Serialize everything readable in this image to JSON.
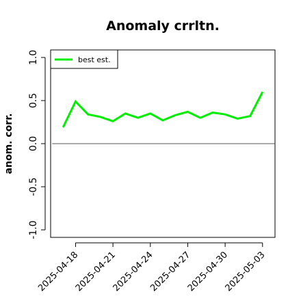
{
  "chart_data": {
    "type": "line",
    "title": "Anomaly crrltn.",
    "xlabel": "",
    "ylabel": "anom. corr.",
    "x": [
      "2025-04-17",
      "2025-04-18",
      "2025-04-19",
      "2025-04-20",
      "2025-04-21",
      "2025-04-22",
      "2025-04-23",
      "2025-04-24",
      "2025-04-25",
      "2025-04-26",
      "2025-04-27",
      "2025-04-28",
      "2025-04-29",
      "2025-04-30",
      "2025-05-01",
      "2025-05-02",
      "2025-05-03"
    ],
    "series": [
      {
        "name": "best est.",
        "color": "#00ee00",
        "values": [
          0.19,
          0.49,
          0.34,
          0.31,
          0.26,
          0.35,
          0.3,
          0.35,
          0.27,
          0.33,
          0.37,
          0.3,
          0.36,
          0.34,
          0.29,
          0.32,
          0.6
        ]
      }
    ],
    "reference_line": {
      "y": 0,
      "color": "#555555"
    },
    "ylim": [
      -1.0,
      1.0
    ],
    "xlim": [
      "2025-04-16",
      "2025-05-04"
    ],
    "yticks": [
      "-1.0",
      "-0.5",
      "0.0",
      "0.5",
      "1.0"
    ],
    "xticks": [
      {
        "x": "2025-04-18",
        "label": "2025-04-18"
      },
      {
        "x": "2025-04-21",
        "label": "2025-04-21"
      },
      {
        "x": "2025-04-24",
        "label": "2025-04-24"
      },
      {
        "x": "2025-04-27",
        "label": "2025-04-27"
      },
      {
        "x": "2025-04-30",
        "label": "2025-04-30"
      },
      {
        "x": "2025-05-03",
        "label": "2025-05-03"
      }
    ],
    "legend": {
      "position": "top-left"
    },
    "grid": false
  }
}
